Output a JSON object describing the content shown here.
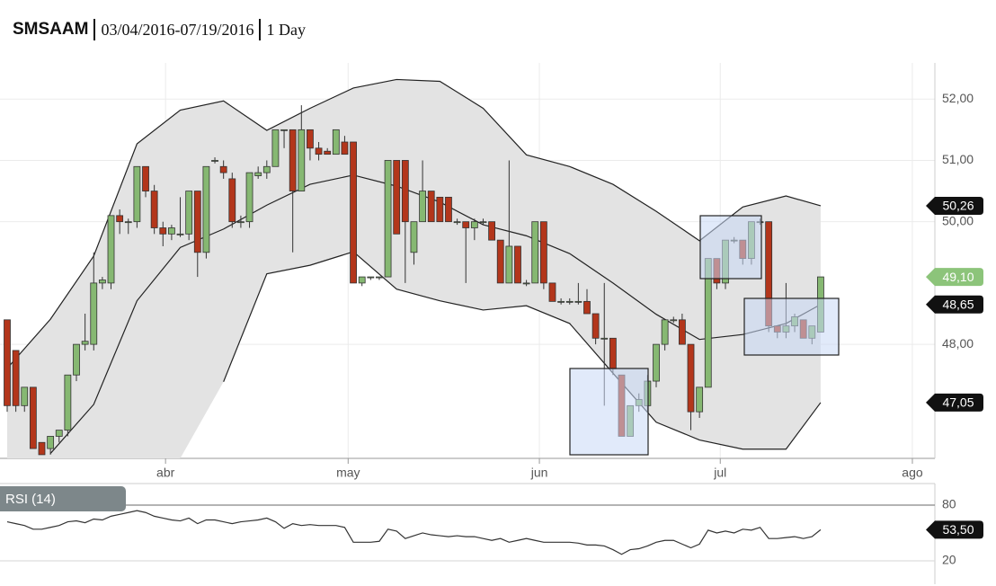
{
  "header": {
    "title": "SMSAAM",
    "date_range": "03/04/2016-07/19/2016",
    "interval": "1 Day"
  },
  "chart_data": [
    {
      "type": "candlestick",
      "xlim": [
        -0.83,
        107.2
      ],
      "xticks": [
        {
          "value": 18.3,
          "label": "abr"
        },
        {
          "value": 39.4,
          "label": "may"
        },
        {
          "value": 61.5,
          "label": "jun"
        },
        {
          "value": 82.4,
          "label": "jul"
        },
        {
          "value": 104.6,
          "label": "ago"
        }
      ],
      "ylim": [
        46.14,
        52.59
      ],
      "yticks": [
        {
          "value": 48,
          "label": "48,00"
        },
        {
          "value": 50,
          "label": "50,00"
        },
        {
          "value": 51,
          "label": "51,00"
        },
        {
          "value": 52,
          "label": "52,00"
        }
      ],
      "grid": true,
      "up_color": "#86b872",
      "down_color": "#b3361b",
      "ohlc": [
        [
          48.4,
          48.4,
          46.9,
          47.0
        ],
        [
          47.9,
          47.9,
          46.9,
          47.0
        ],
        [
          47.0,
          47.3,
          46.9,
          47.3
        ],
        [
          47.3,
          47.3,
          46.3,
          46.3
        ],
        [
          46.4,
          46.4,
          46.2,
          46.2
        ],
        [
          46.3,
          46.5,
          46.2,
          46.5
        ],
        [
          46.5,
          46.6,
          46.4,
          46.6
        ],
        [
          46.6,
          47.5,
          46.5,
          47.5
        ],
        [
          47.5,
          48.0,
          47.4,
          48.0
        ],
        [
          48.0,
          48.5,
          47.9,
          48.05
        ],
        [
          48.0,
          49.5,
          47.9,
          49.0
        ],
        [
          49.0,
          49.1,
          48.9,
          49.05
        ],
        [
          49.0,
          50.1,
          48.9,
          50.1
        ],
        [
          50.1,
          50.2,
          49.8,
          50.0
        ],
        [
          50.0,
          50.05,
          49.8,
          50.0
        ],
        [
          50.0,
          50.9,
          49.9,
          50.9
        ],
        [
          50.9,
          50.9,
          50.4,
          50.5
        ],
        [
          50.5,
          50.6,
          49.8,
          49.9
        ],
        [
          49.9,
          50.0,
          49.6,
          49.8
        ],
        [
          49.8,
          49.95,
          49.7,
          49.9
        ],
        [
          49.8,
          50.4,
          49.75,
          49.8
        ],
        [
          49.8,
          50.5,
          49.7,
          50.5
        ],
        [
          50.5,
          50.5,
          49.1,
          49.5
        ],
        [
          49.5,
          50.9,
          49.4,
          50.9
        ],
        [
          51.0,
          51.05,
          50.95,
          51.0
        ],
        [
          50.9,
          51.0,
          50.7,
          50.8
        ],
        [
          50.7,
          50.8,
          49.9,
          50.0
        ],
        [
          50.0,
          50.1,
          49.9,
          50.0
        ],
        [
          50.0,
          50.8,
          49.9,
          50.8
        ],
        [
          50.75,
          50.9,
          50.7,
          50.8
        ],
        [
          50.8,
          51.0,
          50.7,
          50.9
        ],
        [
          50.9,
          51.5,
          50.9,
          51.5
        ],
        [
          51.5,
          51.5,
          51.2,
          51.5
        ],
        [
          51.5,
          51.5,
          49.5,
          50.5
        ],
        [
          50.5,
          51.9,
          50.5,
          51.5
        ],
        [
          51.5,
          51.5,
          51.0,
          51.2
        ],
        [
          51.2,
          51.3,
          51.0,
          51.1
        ],
        [
          51.15,
          51.2,
          51.1,
          51.1
        ],
        [
          51.1,
          51.5,
          51.1,
          51.5
        ],
        [
          51.3,
          51.4,
          51.1,
          51.1
        ],
        [
          51.3,
          51.3,
          49.0,
          49.0
        ],
        [
          49.0,
          49.1,
          48.95,
          49.1
        ],
        [
          49.1,
          49.1,
          49.05,
          49.1
        ],
        [
          49.1,
          49.1,
          49.05,
          49.1
        ],
        [
          49.1,
          51.0,
          49.1,
          51.0
        ],
        [
          51.0,
          51.0,
          49.8,
          49.8
        ],
        [
          51.0,
          51.0,
          49.0,
          50.0
        ],
        [
          49.5,
          50.0,
          49.3,
          50.0
        ],
        [
          50.0,
          51.0,
          50.0,
          50.5
        ],
        [
          50.5,
          50.5,
          50.0,
          50.0
        ],
        [
          50.4,
          50.4,
          50.0,
          50.0
        ],
        [
          50.4,
          50.4,
          50.0,
          50.0
        ],
        [
          50.0,
          50.05,
          49.95,
          50.0
        ],
        [
          50.0,
          50.0,
          49.0,
          49.9
        ],
        [
          49.9,
          50.05,
          49.7,
          50.0
        ],
        [
          50.0,
          50.05,
          49.95,
          50.0
        ],
        [
          50.0,
          50.0,
          49.7,
          49.7
        ],
        [
          49.7,
          49.7,
          49.0,
          49.0
        ],
        [
          49.0,
          51.0,
          49.0,
          49.6
        ],
        [
          49.6,
          49.6,
          49.0,
          49.0
        ],
        [
          49.0,
          49.05,
          48.95,
          49.0
        ],
        [
          49.0,
          50.0,
          49.0,
          50.0
        ],
        [
          50.0,
          50.0,
          48.9,
          49.0
        ],
        [
          49.0,
          49.0,
          48.7,
          48.7
        ],
        [
          48.7,
          48.75,
          48.65,
          48.7
        ],
        [
          48.7,
          48.75,
          48.65,
          48.7
        ],
        [
          48.7,
          49.0,
          48.65,
          48.7
        ],
        [
          48.7,
          48.9,
          48.5,
          48.5
        ],
        [
          48.5,
          48.5,
          48.0,
          48.1
        ],
        [
          48.1,
          49.0,
          47.0,
          48.1
        ],
        [
          48.1,
          48.1,
          47.5,
          47.6
        ],
        [
          47.5,
          47.5,
          46.5,
          46.5
        ],
        [
          46.5,
          47.0,
          46.5,
          47.0
        ],
        [
          47.0,
          47.2,
          46.9,
          47.1
        ],
        [
          47.0,
          47.5,
          46.9,
          47.4
        ],
        [
          47.4,
          48.0,
          47.3,
          48.0
        ],
        [
          48.0,
          48.4,
          47.9,
          48.4
        ],
        [
          48.4,
          48.45,
          48.35,
          48.4
        ],
        [
          48.4,
          48.5,
          48.0,
          48.0
        ],
        [
          48.0,
          48.0,
          46.6,
          46.9
        ],
        [
          46.9,
          47.3,
          46.8,
          47.3
        ],
        [
          47.3,
          49.4,
          47.3,
          49.4
        ],
        [
          49.4,
          49.4,
          48.9,
          49.0
        ],
        [
          49.0,
          49.7,
          48.9,
          49.7
        ],
        [
          49.7,
          49.75,
          49.65,
          49.7
        ],
        [
          49.7,
          49.7,
          49.3,
          49.4
        ],
        [
          49.4,
          50.0,
          49.3,
          50.0
        ],
        [
          50.0,
          50.05,
          49.95,
          50.0
        ],
        [
          50.0,
          50.0,
          48.2,
          48.3
        ],
        [
          48.3,
          48.3,
          48.1,
          48.2
        ],
        [
          48.2,
          49.0,
          48.1,
          48.3
        ],
        [
          48.3,
          48.5,
          48.2,
          48.45
        ],
        [
          48.4,
          48.4,
          48.1,
          48.1
        ],
        [
          48.1,
          48.3,
          48.0,
          48.3
        ],
        [
          48.2,
          49.1,
          48.2,
          49.1
        ]
      ],
      "bands": {
        "x": [
          0,
          5,
          10,
          15,
          20,
          25,
          30,
          35,
          40,
          45,
          50,
          55,
          60,
          65,
          70,
          75,
          80,
          85,
          90,
          94
        ],
        "upper": [
          47.61,
          48.41,
          49.44,
          51.27,
          51.82,
          51.97,
          51.49,
          51.85,
          52.18,
          52.32,
          52.29,
          51.85,
          51.09,
          50.9,
          50.61,
          50.17,
          49.69,
          50.24,
          50.42,
          50.26
        ],
        "middle": [
          null,
          46.22,
          47.02,
          48.71,
          49.58,
          49.88,
          50.27,
          50.61,
          50.76,
          50.58,
          50.32,
          49.95,
          49.77,
          49.48,
          49.0,
          48.49,
          48.08,
          48.16,
          48.34,
          48.65
        ],
        "lower": [
          null,
          null,
          null,
          null,
          null,
          47.39,
          49.15,
          49.29,
          49.51,
          48.9,
          48.71,
          48.56,
          48.63,
          48.34,
          47.53,
          46.73,
          46.44,
          46.29,
          46.29,
          47.05
        ],
        "fill": "#e3e3e3",
        "color": "#222"
      },
      "price_tags": [
        {
          "value": 50.26,
          "label": "50,26",
          "color": "#111"
        },
        {
          "value": 49.1,
          "label": "49,10",
          "color": "#8cc47a"
        },
        {
          "value": 48.65,
          "label": "48,65",
          "color": "#111"
        },
        {
          "value": 47.05,
          "label": "47,05",
          "color": "#111"
        }
      ]
    },
    {
      "type": "line",
      "title": "RSI (14)",
      "ylim": [
        -5.2,
        103.2
      ],
      "yticks": [
        20,
        80
      ],
      "color": "#333",
      "values": [
        62,
        60,
        58,
        54,
        54,
        56,
        58,
        62,
        63,
        61,
        65,
        64,
        68,
        70,
        72,
        74,
        72,
        68,
        66,
        64,
        63,
        66,
        60,
        64,
        64,
        62,
        60,
        62,
        63,
        64,
        66,
        62,
        55,
        60,
        58,
        59,
        58,
        58,
        58,
        56,
        40,
        40,
        40,
        41,
        54,
        52,
        44,
        47,
        50,
        48,
        47,
        46,
        47,
        46,
        46,
        44,
        42,
        44,
        40,
        42,
        44,
        42,
        40,
        40,
        40,
        40,
        39,
        37,
        37,
        36,
        32,
        27,
        32,
        33,
        36,
        40,
        42,
        42,
        38,
        34,
        38,
        53,
        50,
        52,
        50,
        54,
        53,
        56,
        44,
        44,
        45,
        46,
        44,
        46,
        53.5
      ],
      "price_tags": [
        {
          "value": 53.5,
          "label": "53,50",
          "color": "#111"
        }
      ]
    }
  ]
}
